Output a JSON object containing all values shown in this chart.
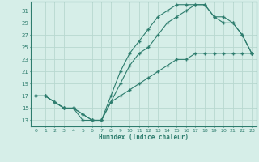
{
  "xlabel": "Humidex (Indice chaleur)",
  "bg_color": "#d6eee8",
  "grid_color": "#b8d8d0",
  "line_color": "#2e7d6e",
  "xlim": [
    -0.5,
    23.5
  ],
  "ylim": [
    12,
    32.5
  ],
  "xticks": [
    0,
    1,
    2,
    3,
    4,
    5,
    6,
    7,
    8,
    9,
    10,
    11,
    12,
    13,
    14,
    15,
    16,
    17,
    18,
    19,
    20,
    21,
    22,
    23
  ],
  "yticks": [
    13,
    15,
    17,
    19,
    21,
    23,
    25,
    27,
    29,
    31
  ],
  "line1_x": [
    0,
    1,
    2,
    3,
    4,
    5,
    6,
    7,
    8,
    9,
    10,
    11,
    12,
    13,
    14,
    15,
    16,
    17,
    18,
    19,
    20,
    21,
    22,
    23
  ],
  "line1_y": [
    17,
    17,
    16,
    15,
    15,
    13,
    13,
    13,
    17,
    21,
    24,
    26,
    28,
    30,
    31,
    32,
    32,
    32,
    32,
    30,
    29,
    29,
    27,
    24
  ],
  "line2_x": [
    0,
    1,
    2,
    3,
    4,
    5,
    6,
    7,
    8,
    9,
    10,
    11,
    12,
    13,
    14,
    15,
    16,
    17,
    18,
    19,
    20,
    21,
    22,
    23
  ],
  "line2_y": [
    17,
    17,
    16,
    15,
    15,
    14,
    13,
    13,
    16,
    19,
    22,
    24,
    25,
    27,
    29,
    30,
    31,
    32,
    32,
    30,
    30,
    29,
    27,
    24
  ],
  "line3_x": [
    0,
    1,
    2,
    3,
    4,
    5,
    6,
    7,
    8,
    9,
    10,
    11,
    12,
    13,
    14,
    15,
    16,
    17,
    18,
    19,
    20,
    21,
    22,
    23
  ],
  "line3_y": [
    17,
    17,
    16,
    15,
    15,
    14,
    13,
    13,
    16,
    17,
    18,
    19,
    20,
    21,
    22,
    23,
    23,
    24,
    24,
    24,
    24,
    24,
    24,
    24
  ]
}
